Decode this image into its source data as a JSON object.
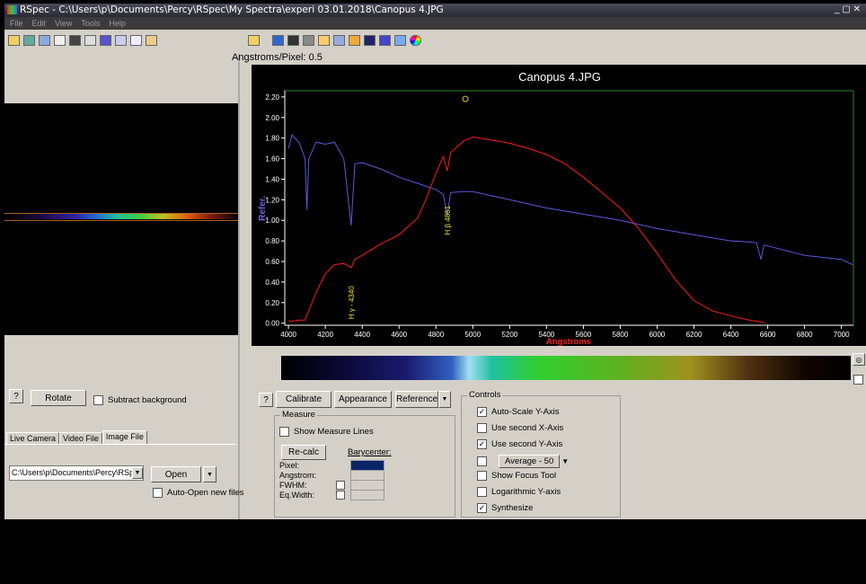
{
  "window": {
    "title": "RSpec - C:\\Users\\p\\Documents\\Percy\\RSpec\\My Spectra\\experi 03.01.2018\\Canopus 4.JPG",
    "menu": [
      "File",
      "Edit",
      "View",
      "Tools",
      "Help"
    ]
  },
  "left_panel": {
    "rotate": "Rotate",
    "subtract_background": {
      "label": "Subtract background",
      "checked": false
    },
    "tabs": [
      "Live Camera",
      "Video File",
      "Image File"
    ],
    "path": "C:\\Users\\p\\Documents\\Percy\\RSpec\\",
    "open": "Open",
    "auto_open": {
      "label": "Auto-Open new files",
      "checked": false
    }
  },
  "header": {
    "scale": "Angstroms/Pixel: 0.5"
  },
  "chart_data": {
    "type": "line",
    "title": "Canopus 4.JPG",
    "x_label": "Angstroms",
    "y_label": "Refer.",
    "x": [
      4000,
      4020,
      4060,
      4090,
      4100,
      4110,
      4150,
      4200,
      4250,
      4300,
      4340,
      4360,
      4400,
      4500,
      4600,
      4700,
      4750,
      4800,
      4840,
      4861,
      4880,
      4950,
      5000,
      5100,
      5200,
      5300,
      5400,
      5500,
      5600,
      5700,
      5800,
      5900,
      6000,
      6100,
      6200,
      6300,
      6400,
      6500,
      6540,
      6563,
      6580,
      6800,
      7000,
      7060
    ],
    "series": [
      {
        "color": "#5a5adc",
        "values": [
          1.7,
          1.83,
          1.75,
          1.6,
          1.1,
          1.6,
          1.76,
          1.74,
          1.76,
          1.6,
          0.95,
          1.55,
          1.56,
          1.5,
          1.42,
          1.36,
          1.33,
          1.3,
          1.25,
          1.05,
          1.27,
          1.28,
          1.28,
          1.24,
          1.2,
          1.16,
          1.12,
          1.09,
          1.06,
          1.03,
          1.0,
          0.96,
          0.92,
          0.89,
          0.86,
          0.83,
          0.8,
          0.79,
          0.78,
          0.62,
          0.76,
          0.66,
          0.62,
          0.57
        ]
      },
      {
        "color": "#ff1a1a",
        "values": [
          0.02,
          0.02,
          0.03,
          0.03,
          0.08,
          0.12,
          0.3,
          0.48,
          0.57,
          0.58,
          0.54,
          0.62,
          0.66,
          0.77,
          0.86,
          1.02,
          1.22,
          1.46,
          1.62,
          1.48,
          1.66,
          1.77,
          1.81,
          1.78,
          1.75,
          1.7,
          1.64,
          1.55,
          1.42,
          1.27,
          1.12,
          0.92,
          0.68,
          0.42,
          0.22,
          0.12,
          0.07,
          0.03,
          0.02,
          0.01,
          0.01,
          null,
          null,
          null
        ]
      }
    ],
    "xlim": [
      3980,
      7065
    ],
    "ylim": [
      -0.02,
      2.26
    ],
    "xticks": [
      4000,
      4200,
      4400,
      4600,
      4800,
      5000,
      5200,
      5400,
      5600,
      5800,
      6000,
      6200,
      6400,
      6600,
      6800,
      7000
    ],
    "yticks": [
      {
        "value": 0,
        "label": "0.00"
      },
      {
        "value": 0.2,
        "label": "0.20"
      },
      {
        "value": 0.4,
        "label": "0.40"
      },
      {
        "value": 0.6,
        "label": "0.60"
      },
      {
        "value": 0.8,
        "label": "0.80"
      },
      {
        "value": 1,
        "label": "1.00"
      },
      {
        "value": 1.2,
        "label": "1.20"
      },
      {
        "value": 1.4,
        "label": "1.40"
      },
      {
        "value": 1.6,
        "label": "1.60"
      },
      {
        "value": 1.8,
        "label": "1.80"
      },
      {
        "value": 2,
        "label": "2.00"
      },
      {
        "value": 2.2,
        "label": "2.20"
      }
    ],
    "annotations": [
      {
        "text": "H γ - 4340",
        "x": 4340,
        "y": 0.2
      },
      {
        "text": "H β 4861",
        "x": 4861,
        "y": 1.0
      }
    ],
    "peak_marker": {
      "x": 4960,
      "y": 2.18
    }
  },
  "buttons": [
    "Calibrate",
    "Appearance",
    "Reference"
  ],
  "measure": {
    "title": "Measure",
    "show_lines": {
      "label": "Show Measure Lines",
      "checked": false
    },
    "recalc": "Re-calc",
    "barycenter": "Barycenter:",
    "fields": [
      "Pixel:",
      "Angstrom:",
      "FWHM:",
      "Eq.Width:"
    ]
  },
  "controls": {
    "title": "Controls",
    "options": [
      {
        "label": "Auto-Scale Y-Axis",
        "checked": true
      },
      {
        "label": "Use second X-Axis",
        "checked": false
      },
      {
        "label": "Use second Y-Axis",
        "checked": true
      },
      {
        "label": "Average - 50",
        "checked": false
      },
      {
        "label": "Show Focus Tool",
        "checked": false
      },
      {
        "label": "Logarithmic Y-axis",
        "checked": false
      },
      {
        "label": "Synthesize",
        "checked": true
      }
    ]
  }
}
